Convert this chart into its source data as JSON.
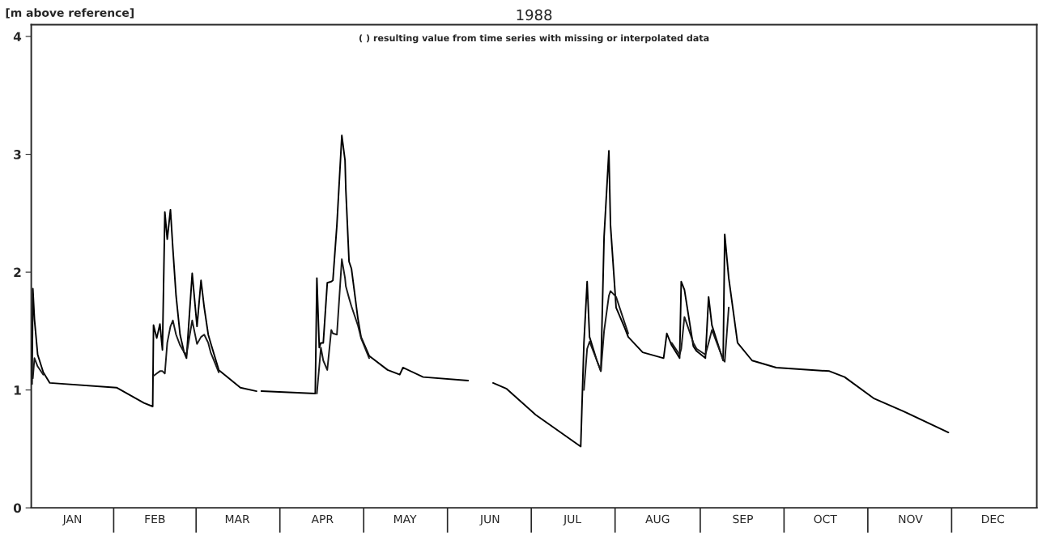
{
  "chart_data": {
    "type": "line",
    "title": "1988",
    "ylabel": "[m above reference]",
    "annotations": [
      "( ) resulting value from time series with missing or interpolated data"
    ],
    "x": [
      "1988-01-01T07:00",
      "1988-01-01T14:00",
      "1988-01-02T04:00",
      "1988-01-03T08:00",
      "1988-01-05T09:00",
      "1988-01-07T18:00",
      "1988-02-01T01:00",
      "1988-02-11T00:00",
      "1988-02-14T05:00",
      "1988-02-14T12:00",
      "1988-02-15T16:00",
      "1988-02-16T20:00",
      "1988-02-17T18:00",
      "1988-02-18T15:00",
      "1988-02-19T12:00",
      "1988-02-20T16:00",
      "1988-02-21T13:00",
      "1988-02-22T17:00",
      "1988-02-24T04:00",
      "1988-02-25T15:00",
      "1988-02-26T12:00",
      "1988-02-28T14:00",
      "1988-03-01T08:00",
      "1988-03-02T19:00",
      "1988-03-03T23:00",
      "1988-03-05T10:00",
      "1988-03-06T07:00",
      "1988-03-09T06:00",
      "1988-03-17T03:00",
      "1988-03-23T00:00",
      "1988-03-23T21:00",
      "1988-03-24T18:00",
      "1988-04-13T09:00",
      "1988-04-13T23:00",
      "1988-04-14T20:00",
      "1988-04-15T10:00",
      "1988-04-16T07:00",
      "1988-04-17T18:00",
      "1988-04-19T05:00",
      "1988-04-19T19:00",
      "1988-04-21T06:00",
      "1988-04-23T01:00",
      "1988-04-24T05:00",
      "1988-04-24T12:00",
      "1988-04-25T16:00",
      "1988-04-26T13:00",
      "1988-04-28T21:00",
      "1988-04-30T01:00",
      "1988-05-03T00:00",
      "1988-05-09T17:00",
      "1988-05-14T03:00",
      "1988-05-15T07:00",
      "1988-05-22T15:00",
      "1988-06-08T00:00",
      "1988-06-12T10:00",
      "1988-06-17T02:00",
      "1988-06-22T01:00",
      "1988-07-02T14:00",
      "1988-07-19T00:00",
      "1988-07-20T04:00",
      "1988-07-21T08:00",
      "1988-07-22T05:00",
      "1988-07-24T21:00",
      "1988-07-26T08:00",
      "1988-07-27T12:00",
      "1988-07-29T06:00",
      "1988-07-29T20:00",
      "1988-07-31T21:00",
      "1988-08-04T03:00",
      "1988-08-05T07:00",
      "1988-08-10T13:00",
      "1988-08-18T04:00",
      "1988-08-19T08:00",
      "1988-08-21T02:00",
      "1988-08-24T00:00",
      "1988-08-24T14:00",
      "1988-08-25T18:00",
      "1988-08-29T00:00",
      "1988-08-30T04:00",
      "1988-09-02T09:00",
      "1988-09-03T13:00",
      "1988-09-04T18:00",
      "1988-09-08T20:00",
      "1988-09-09T10:00",
      "1988-09-10T21:00",
      "1988-09-14T02:00",
      "1988-09-19T09:00",
      "1988-09-28T04:00",
      "1988-10-17T12:00",
      "1988-10-23T01:00",
      "1988-11-02T14:00",
      "1988-11-13T10:00",
      "1988-11-29T20:00"
    ],
    "series": [
      {
        "color": "#000000",
        "values": [
          1.05,
          1.86,
          1.6,
          1.3,
          1.15,
          1.06,
          1.02,
          0.89,
          0.86,
          1.55,
          1.44,
          1.56,
          1.34,
          2.51,
          2.28,
          2.53,
          2.2,
          1.8,
          1.47,
          1.32,
          1.27,
          1.99,
          1.54,
          1.93,
          1.7,
          1.47,
          1.4,
          1.17,
          1.02,
          0.99,
          null,
          0.99,
          0.97,
          1.95,
          1.36,
          1.4,
          1.4,
          1.91,
          1.92,
          1.93,
          2.4,
          3.16,
          2.95,
          2.7,
          2.09,
          2.03,
          1.61,
          1.45,
          1.29,
          1.17,
          1.13,
          1.19,
          1.11,
          1.08,
          null,
          1.06,
          1.01,
          0.79,
          0.52,
          1.4,
          1.92,
          1.45,
          1.25,
          1.16,
          2.3,
          3.03,
          2.4,
          1.7,
          1.52,
          1.45,
          1.32,
          1.27,
          1.48,
          1.38,
          1.27,
          1.92,
          1.85,
          1.37,
          1.33,
          1.27,
          1.79,
          1.55,
          1.25,
          2.32,
          1.95,
          1.4,
          1.25,
          1.19,
          1.16,
          1.11,
          0.93,
          0.82,
          0.64
        ]
      },
      {
        "color": "#1a1a1a",
        "values": [
          null,
          1.1,
          1.27,
          1.2,
          1.13,
          null,
          null,
          null,
          null,
          1.12,
          1.14,
          1.16,
          1.16,
          1.14,
          1.4,
          1.54,
          1.59,
          1.47,
          1.38,
          1.32,
          1.3,
          1.59,
          1.39,
          1.45,
          1.47,
          1.4,
          1.32,
          1.15,
          null,
          null,
          null,
          null,
          null,
          0.97,
          1.2,
          1.36,
          1.25,
          1.17,
          1.51,
          1.48,
          1.47,
          2.11,
          1.95,
          1.88,
          1.78,
          1.71,
          1.55,
          1.44,
          1.27,
          null,
          null,
          null,
          null,
          null,
          null,
          null,
          null,
          null,
          null,
          1.0,
          1.35,
          1.41,
          1.25,
          1.16,
          1.5,
          1.8,
          1.84,
          1.79,
          1.56,
          1.48,
          null,
          null,
          null,
          1.4,
          1.3,
          1.35,
          1.62,
          1.4,
          1.35,
          1.3,
          1.4,
          1.51,
          1.26,
          1.24,
          1.7,
          null,
          null,
          null,
          null,
          null,
          null,
          null,
          null
        ]
      }
    ],
    "xlim": [
      "1988-01-01",
      "1989-01-01"
    ],
    "xticks": [
      {
        "value": "1988-01-16",
        "label": "JAN"
      },
      {
        "value": "1988-02-15",
        "label": "FEB"
      },
      {
        "value": "1988-03-16",
        "label": "MAR"
      },
      {
        "value": "1988-04-16",
        "label": "APR"
      },
      {
        "value": "1988-05-16",
        "label": "MAY"
      },
      {
        "value": "1988-06-16",
        "label": "JUN"
      },
      {
        "value": "1988-07-16",
        "label": "JUL"
      },
      {
        "value": "1988-08-16",
        "label": "AUG"
      },
      {
        "value": "1988-09-16",
        "label": "SEP"
      },
      {
        "value": "1988-10-16",
        "label": "OCT"
      },
      {
        "value": "1988-11-16",
        "label": "NOV"
      },
      {
        "value": "1988-12-16",
        "label": "DEC"
      }
    ],
    "ylim": [
      0,
      4.1
    ],
    "yticks": [
      0,
      1,
      2,
      3,
      4
    ],
    "grid": false,
    "legend": false,
    "line_style": "solid",
    "marker": "none"
  }
}
